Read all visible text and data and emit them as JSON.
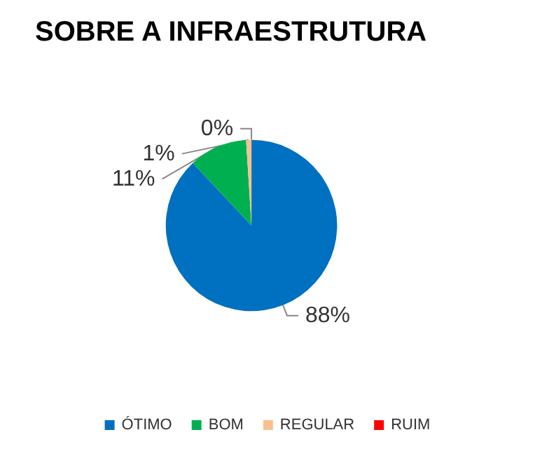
{
  "chart_data": {
    "type": "pie",
    "title": "SOBRE A INFRAESTRUTURA",
    "categories": [
      "ÓTIMO",
      "BOM",
      "REGULAR",
      "RUIM"
    ],
    "values": [
      88,
      11,
      1,
      0
    ],
    "value_labels": [
      "88%",
      "11%",
      "1%",
      "0%"
    ],
    "colors": [
      "#0070c0",
      "#00b050",
      "#fac090",
      "#ff0000"
    ],
    "legend": "bottom"
  }
}
